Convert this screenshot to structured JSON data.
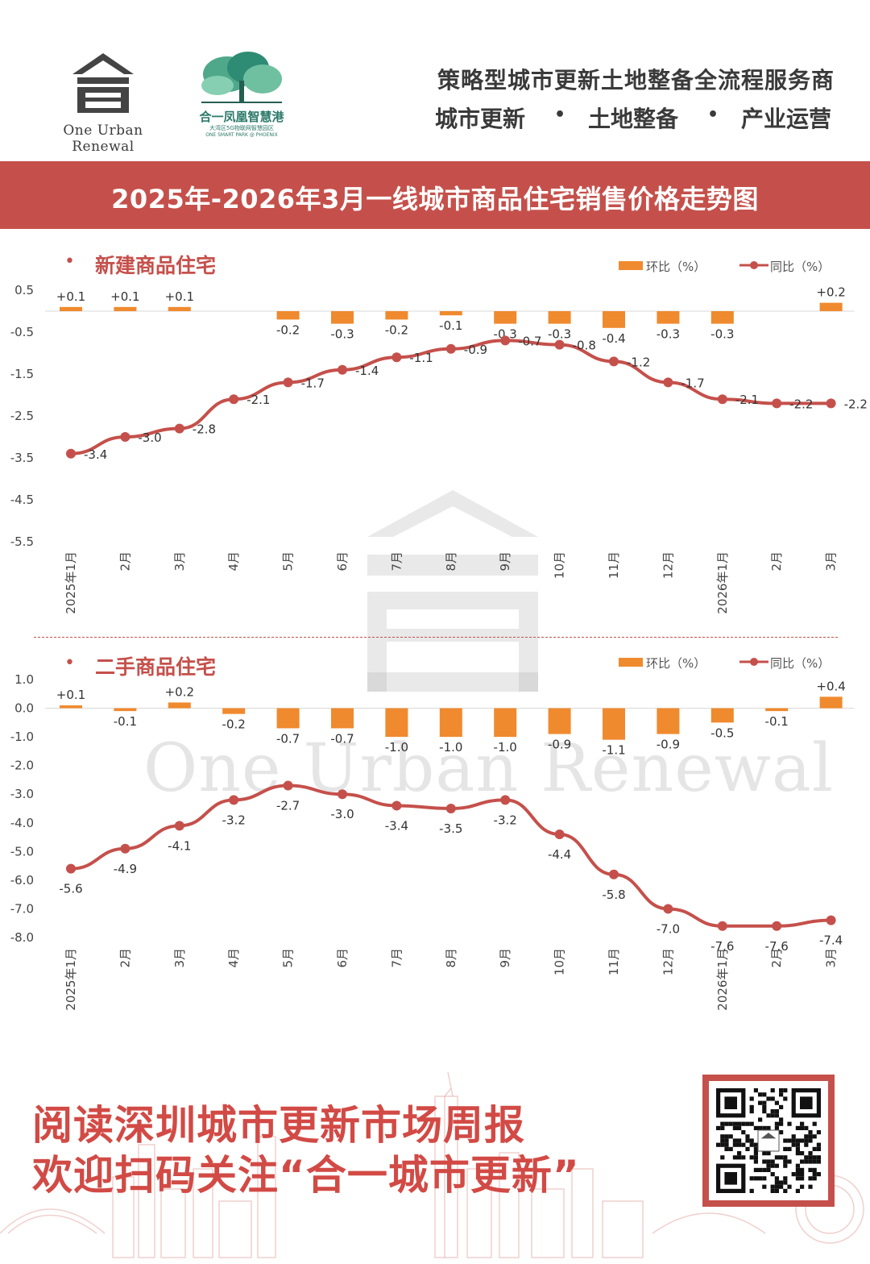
{
  "header": {
    "logo_name": "One Urban Renewal",
    "logo2_name": "合一凤凰智慧港",
    "logo2_subtitle": "大湾区5G物联网智慧园区",
    "logo2_subtitle_en": "ONE SMART PARK @ PHOENIX",
    "slogan": "策略型城市更新土地整备全流程服务商",
    "services": [
      "城市更新",
      "•",
      "土地整备",
      "•",
      "产业运营"
    ]
  },
  "title": "2025年-2026年3月一线城市商品住宅销售价格走势图",
  "legend": {
    "mom": "环比（%）",
    "yoy": "同比（%）"
  },
  "watermark": "One Urban Renewal",
  "footer": {
    "line1": "阅读深圳城市更新市场周报",
    "line2": "欢迎扫码关注“合一城市更新”"
  },
  "colors": {
    "accent": "#c5504b",
    "bar": "#f08a2e",
    "line": "#c5504b",
    "logo_green": "#2c7a6a"
  },
  "chart_data": [
    {
      "type": "bar+line",
      "title": "新建商品住宅",
      "categories": [
        "2025年1月",
        "2月",
        "3月",
        "4月",
        "5月",
        "6月",
        "7月",
        "8月",
        "9月",
        "10月",
        "11月",
        "12月",
        "2026年1月",
        "2月",
        "3月"
      ],
      "y_ticks": [
        "0.5",
        "-0.5",
        "-1.5",
        "-2.5",
        "-3.5",
        "-4.5",
        "-5.5"
      ],
      "ylim": [
        -5.5,
        0.5
      ],
      "series": [
        {
          "name": "环比（%）",
          "type": "bar",
          "values": [
            0.1,
            0.1,
            0.1,
            null,
            -0.2,
            -0.3,
            -0.2,
            -0.1,
            -0.3,
            -0.3,
            -0.4,
            -0.3,
            -0.3,
            null,
            0.2
          ],
          "labels": [
            "+0.1",
            "+0.1",
            "+0.1",
            "",
            "-0.2",
            "-0.3",
            "-0.2",
            "-0.1",
            "-0.3",
            "-0.3",
            "-0.4",
            "-0.3",
            "-0.3",
            "",
            "+0.2"
          ]
        },
        {
          "name": "同比（%）",
          "type": "line",
          "values": [
            -3.4,
            -3.0,
            -2.8,
            -2.1,
            -1.7,
            -1.4,
            -1.1,
            -0.9,
            -0.7,
            -0.8,
            -1.2,
            -1.7,
            -2.1,
            -2.2,
            -2.2
          ],
          "labels": [
            "-3.4",
            "-3.0",
            "-2.8",
            "-2.1",
            "-1.7",
            "-1.4",
            "-1.1",
            "-0.9",
            "-0.7",
            "-0.8",
            "-1.2",
            "-1.7",
            "-2.1",
            "-2.2",
            "-2.2"
          ]
        }
      ],
      "grid": false,
      "legend_position": "top-right"
    },
    {
      "type": "bar+line",
      "title": "二手商品住宅",
      "categories": [
        "2025年1月",
        "2月",
        "3月",
        "4月",
        "5月",
        "6月",
        "7月",
        "8月",
        "9月",
        "10月",
        "11月",
        "12月",
        "2026年1月",
        "2月",
        "3月"
      ],
      "y_ticks": [
        "1.0",
        "0.0",
        "-1.0",
        "-2.0",
        "-3.0",
        "-4.0",
        "-5.0",
        "-6.0",
        "-7.0",
        "-8.0"
      ],
      "ylim": [
        -8.0,
        1.0
      ],
      "series": [
        {
          "name": "环比（%）",
          "type": "bar",
          "values": [
            0.1,
            -0.1,
            0.2,
            -0.2,
            -0.7,
            -0.7,
            -1.0,
            -1.0,
            -1.0,
            -0.9,
            -1.1,
            -0.9,
            -0.5,
            -0.1,
            0.4
          ],
          "labels": [
            "+0.1",
            "-0.1",
            "+0.2",
            "-0.2",
            "-0.7",
            "-0.7",
            "-1.0",
            "-1.0",
            "-1.0",
            "-0.9",
            "-1.1",
            "-0.9",
            "-0.5",
            "-0.1",
            "+0.4"
          ]
        },
        {
          "name": "同比（%）",
          "type": "line",
          "values": [
            -5.6,
            -4.9,
            -4.1,
            -3.2,
            -2.7,
            -3.0,
            -3.4,
            -3.5,
            -3.2,
            -4.4,
            -5.8,
            -7.0,
            -7.6,
            -7.6,
            -7.4
          ],
          "labels": [
            "-5.6",
            "-4.9",
            "-4.1",
            "-3.2",
            "-2.7",
            "-3.0",
            "-3.4",
            "-3.5",
            "-3.2",
            "-4.4",
            "-5.8",
            "-7.0",
            "-7.6",
            "-7.6",
            "-7.4"
          ]
        }
      ],
      "grid": false,
      "legend_position": "top-right"
    }
  ]
}
